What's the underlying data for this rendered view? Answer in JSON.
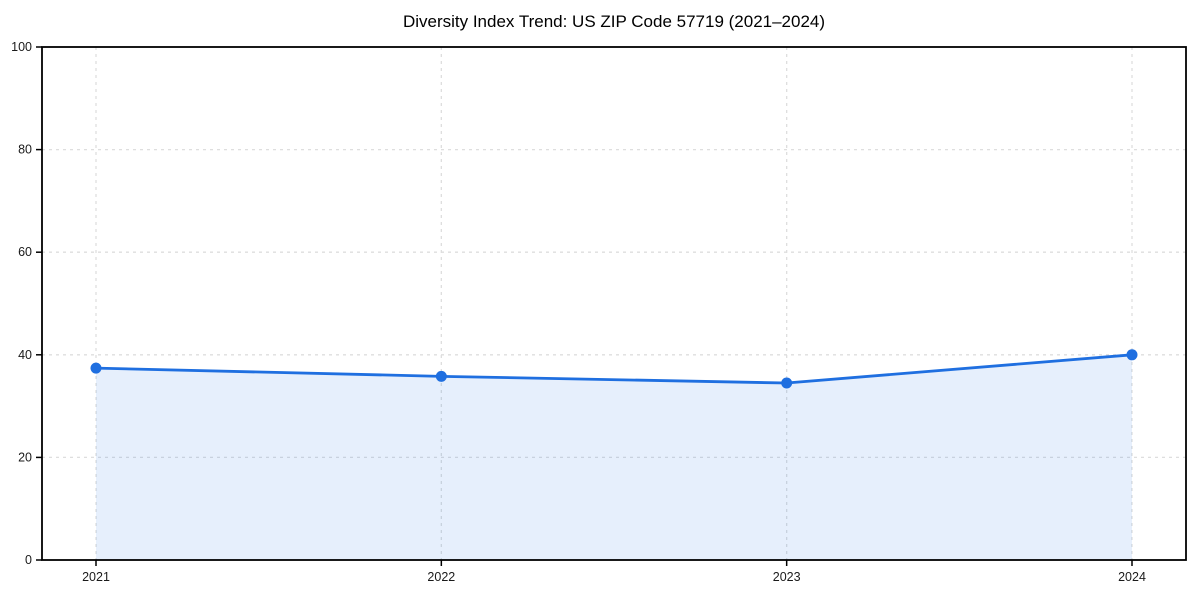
{
  "chart_data": {
    "type": "area",
    "title": "Diversity Index Trend: US ZIP Code 57719 (2021–2024)",
    "categories": [
      "2021",
      "2022",
      "2023",
      "2024"
    ],
    "series": [
      {
        "name": "Diversity Index",
        "values": [
          37.4,
          35.8,
          34.5,
          40.0
        ]
      }
    ],
    "xlabel": "",
    "ylabel": "",
    "ylim": [
      0,
      100
    ],
    "y_ticks": [
      0,
      20,
      40,
      60,
      80,
      100
    ],
    "grid": true,
    "grid_style": "dashed",
    "legend_position": "none",
    "colors": {
      "line": "#1f6fe0",
      "marker": "#1f6fe0",
      "fill": "#1f6fe0",
      "fill_opacity": "0.11",
      "gridline": "#dedede",
      "spine": "#000000",
      "tick_text": "#1a1a1a",
      "background": "#ffffff"
    }
  }
}
